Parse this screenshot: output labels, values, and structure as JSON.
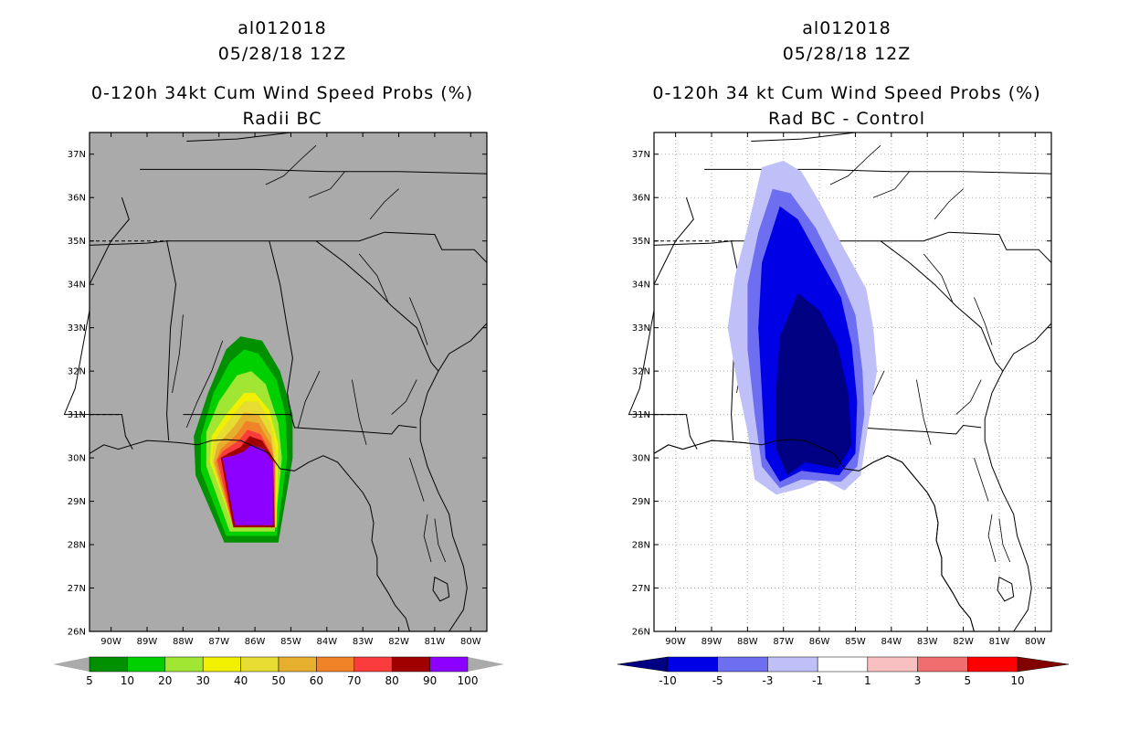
{
  "left": {
    "title_line1": "al012018",
    "title_line2": "05/28/18 12Z",
    "title_line3": "0-120h 34kt Cum Wind Speed Probs (%)",
    "title_line4": "Radii BC",
    "lat_labels": [
      "37N",
      "36N",
      "35N",
      "34N",
      "33N",
      "32N",
      "31N",
      "30N",
      "29N",
      "28N",
      "27N",
      "26N"
    ],
    "lon_labels": [
      "90W",
      "89W",
      "88W",
      "87W",
      "86W",
      "85W",
      "84W",
      "83W",
      "82W",
      "81W",
      "80W"
    ],
    "legend_labels": [
      "5",
      "10",
      "20",
      "30",
      "40",
      "50",
      "60",
      "70",
      "80",
      "90",
      "100"
    ],
    "legend_colors": [
      "#009000",
      "#00d000",
      "#a0e632",
      "#f0f000",
      "#e6dc32",
      "#e6af2d",
      "#f08228",
      "#fa3c3c",
      "#a00000",
      "#8c00ff"
    ],
    "background_color": "#aaaaaa"
  },
  "right": {
    "title_line1": "al012018",
    "title_line2": "05/28/18 12Z",
    "title_line3": "0-120h 34 kt Cum Wind Speed Probs (%)",
    "title_line4": "Rad BC - Control",
    "lat_labels": [
      "37N",
      "36N",
      "35N",
      "34N",
      "33N",
      "32N",
      "31N",
      "30N",
      "29N",
      "28N",
      "27N",
      "26N"
    ],
    "lon_labels": [
      "90W",
      "89W",
      "88W",
      "87W",
      "86W",
      "85W",
      "84W",
      "83W",
      "82W",
      "81W",
      "80W"
    ],
    "legend_labels": [
      "-10",
      "-5",
      "-3",
      "-1",
      "1",
      "3",
      "5",
      "10"
    ],
    "legend_colors": [
      "#0000e6",
      "#6e6ef0",
      "#c0c0f8",
      "#ffffff",
      "#f8c0c0",
      "#f06e6e",
      "#ff0000"
    ],
    "legend_end_colors": [
      "#000082",
      "#820000"
    ],
    "background_color": "#ffffff"
  }
}
